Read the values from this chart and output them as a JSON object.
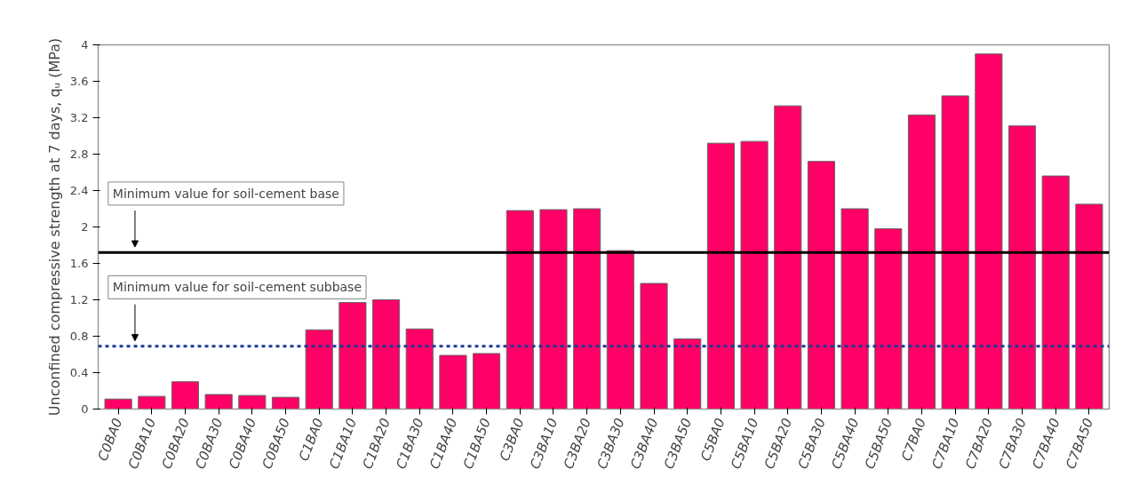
{
  "chart_data": {
    "type": "bar",
    "ylabel": "Unconfined compressive strength at 7 days, qᵤ (MPa)",
    "categories": [
      "C0BA0",
      "C0BA10",
      "C0BA20",
      "C0BA30",
      "C0BA40",
      "C0BA50",
      "C1BA0",
      "C1BA10",
      "C1BA20",
      "C1BA30",
      "C1BA40",
      "C1BA50",
      "C3BA0",
      "C3BA10",
      "C3BA20",
      "C3BA30",
      "C3BA40",
      "C3BA50",
      "C5BA0",
      "C5BA10",
      "C5BA20",
      "C5BA30",
      "C5BA40",
      "C5BA50",
      "C7BA0",
      "C7BA10",
      "C7BA20",
      "C7BA30",
      "C7BA40",
      "C7BA50"
    ],
    "values": [
      0.11,
      0.14,
      0.3,
      0.16,
      0.15,
      0.13,
      0.87,
      1.17,
      1.2,
      0.88,
      0.59,
      0.61,
      2.18,
      2.19,
      2.2,
      1.74,
      1.38,
      0.77,
      2.92,
      2.94,
      3.33,
      2.72,
      2.2,
      1.98,
      3.23,
      3.44,
      3.9,
      3.11,
      2.56,
      2.25
    ],
    "color": "#ff0066",
    "ylim": [
      0,
      4
    ],
    "yticks": [
      0,
      0.4,
      0.8,
      1.2,
      1.6,
      2,
      2.4,
      2.8,
      3.2,
      3.6,
      4
    ],
    "grid": false,
    "ref_lines": [
      {
        "axis": "y",
        "value": 1.72,
        "label": "Minimum value for soil-cement base",
        "color": "#000000",
        "line_style": "solid"
      },
      {
        "axis": "y",
        "value": 0.69,
        "label": "Minimum value for soil-cement subbase",
        "color": "#1a3a9a",
        "line_style": "dashed"
      }
    ]
  }
}
